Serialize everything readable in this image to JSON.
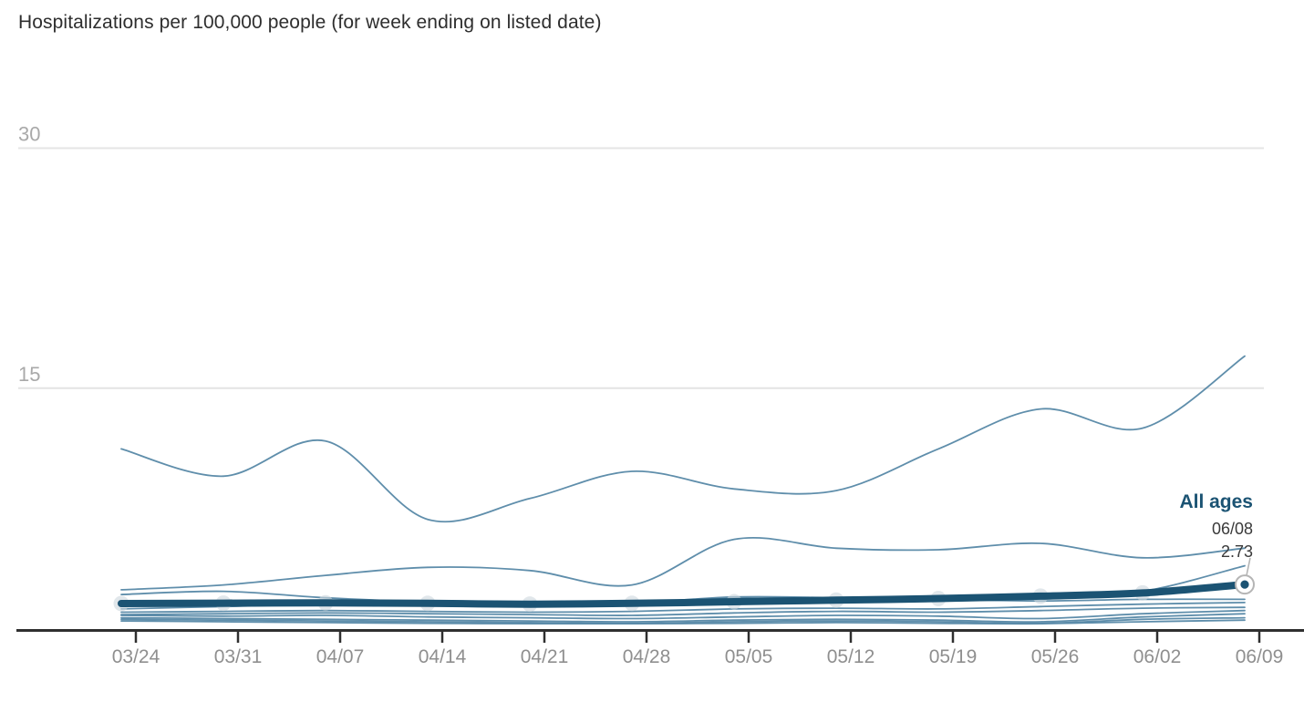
{
  "title": "Hospitalizations per 100,000 people (for week ending on listed date)",
  "annotation": {
    "label": "All ages",
    "date": "06/08",
    "value": "2.73"
  },
  "colors": {
    "thick_line": "#1b5373",
    "thin_line": "#5688a7",
    "gridline": "#e4e4e4",
    "axis": "#2f2f2f",
    "x_tick_label": "#8f8f8f",
    "y_tick_label": "#a9a9a9",
    "title_text": "#2e2e2e",
    "annotation_text": "#3a3a3a",
    "week_marker_fill": "#cdd7de",
    "endpoint_ring": "#b5b5b5",
    "endpoint_dot": "#1b5373"
  },
  "chart_data": {
    "type": "line",
    "title": "Hospitalizations per 100,000 people (for week ending on listed date)",
    "xlabel": "",
    "ylabel": "Hospitalizations per 100,000 people",
    "x_tick_labels": [
      "03/24",
      "03/31",
      "04/07",
      "04/14",
      "04/21",
      "04/28",
      "05/05",
      "05/12",
      "05/19",
      "05/26",
      "06/02",
      "06/09"
    ],
    "y_gridlines": [
      15,
      30
    ],
    "y_tick_labels": [
      "15",
      "30"
    ],
    "ylim": [
      0,
      33
    ],
    "grid": true,
    "legend_position": "end-of-line annotation (All ages only)",
    "annotated_point": {
      "series": "All ages",
      "date": "06/08",
      "value": 2.73
    },
    "series": [
      {
        "name": "series-1",
        "emphasis": false,
        "values": [
          11.2,
          9.5,
          11.7,
          6.8,
          8.1,
          9.8,
          8.7,
          8.6,
          11.2,
          13.7,
          12.5,
          17.0
        ]
      },
      {
        "name": "series-2",
        "emphasis": false,
        "values": [
          2.4,
          2.7,
          3.3,
          3.8,
          3.6,
          2.7,
          5.55,
          5.0,
          4.9,
          5.3,
          4.4,
          5.0
        ]
      },
      {
        "name": "series-3",
        "emphasis": false,
        "values": [
          2.1,
          2.3,
          1.9,
          1.65,
          1.6,
          1.65,
          1.85,
          1.8,
          1.7,
          1.9,
          2.3,
          3.9
        ]
      },
      {
        "name": "series-4",
        "emphasis": false,
        "values": [
          1.2,
          1.35,
          1.5,
          1.45,
          1.4,
          1.55,
          1.95,
          1.9,
          1.8,
          1.7,
          1.8,
          1.8
        ]
      },
      {
        "name": "series-5",
        "emphasis": false,
        "values": [
          1.0,
          1.05,
          1.1,
          1.05,
          1.0,
          1.05,
          1.2,
          1.25,
          1.2,
          1.35,
          1.5,
          1.6
        ]
      },
      {
        "name": "series-6",
        "emphasis": false,
        "values": [
          0.85,
          0.9,
          0.95,
          0.9,
          0.85,
          0.8,
          0.95,
          1.05,
          1.0,
          1.1,
          1.25,
          1.3
        ]
      },
      {
        "name": "series-7",
        "emphasis": false,
        "values": [
          0.8,
          0.75,
          0.8,
          0.7,
          0.65,
          0.6,
          0.7,
          0.8,
          0.75,
          0.6,
          0.9,
          1.1
        ]
      },
      {
        "name": "series-8",
        "emphasis": false,
        "values": [
          0.65,
          0.6,
          0.55,
          0.5,
          0.45,
          0.4,
          0.5,
          0.55,
          0.5,
          0.4,
          0.7,
          0.9
        ]
      },
      {
        "name": "series-9",
        "emphasis": false,
        "values": [
          0.55,
          0.5,
          0.45,
          0.4,
          0.35,
          0.3,
          0.4,
          0.45,
          0.4,
          0.3,
          0.55,
          0.65
        ]
      },
      {
        "name": "series-10",
        "emphasis": false,
        "values": [
          0.45,
          0.4,
          0.35,
          0.3,
          0.28,
          0.28,
          0.3,
          0.35,
          0.3,
          0.28,
          0.4,
          0.5
        ]
      },
      {
        "name": "All ages",
        "emphasis": true,
        "values": [
          1.54,
          1.56,
          1.58,
          1.55,
          1.5,
          1.55,
          1.65,
          1.75,
          1.85,
          2.0,
          2.2,
          2.73
        ]
      }
    ]
  }
}
